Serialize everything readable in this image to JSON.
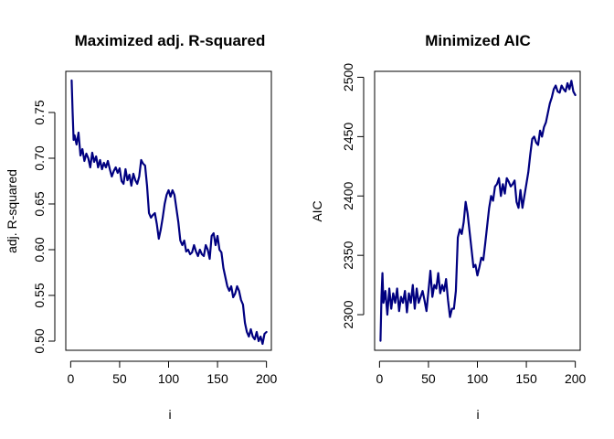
{
  "chart_data": [
    {
      "type": "line",
      "title": "Maximized adj. R-squared",
      "xlabel": "i",
      "ylabel": "adj. R-squared",
      "xlim": [
        -5,
        205
      ],
      "ylim": [
        0.49,
        0.795
      ],
      "xticks": [
        0,
        50,
        100,
        150,
        200
      ],
      "yticks": [
        0.5,
        0.55,
        0.6,
        0.65,
        0.7,
        0.75
      ],
      "ytick_labels": [
        "0.50",
        "0.55",
        "0.60",
        "0.65",
        "0.70",
        "0.75"
      ],
      "grid": false,
      "color": "#000080",
      "x": [
        1,
        2,
        3,
        4,
        6,
        8,
        10,
        12,
        14,
        16,
        18,
        20,
        22,
        24,
        26,
        28,
        30,
        32,
        34,
        36,
        38,
        40,
        42,
        44,
        46,
        48,
        50,
        52,
        54,
        56,
        58,
        60,
        62,
        64,
        66,
        68,
        70,
        72,
        74,
        76,
        78,
        80,
        82,
        84,
        86,
        88,
        90,
        92,
        94,
        96,
        98,
        100,
        102,
        104,
        106,
        108,
        110,
        112,
        114,
        116,
        118,
        120,
        122,
        124,
        126,
        128,
        130,
        132,
        134,
        136,
        138,
        140,
        142,
        144,
        146,
        148,
        150,
        152,
        154,
        156,
        158,
        160,
        162,
        164,
        166,
        168,
        170,
        172,
        174,
        176,
        178,
        180,
        182,
        184,
        186,
        188,
        190,
        192,
        194,
        196,
        198,
        200
      ],
      "y": [
        0.785,
        0.75,
        0.72,
        0.725,
        0.715,
        0.728,
        0.703,
        0.71,
        0.697,
        0.705,
        0.7,
        0.69,
        0.706,
        0.696,
        0.702,
        0.69,
        0.698,
        0.688,
        0.695,
        0.69,
        0.697,
        0.688,
        0.68,
        0.686,
        0.69,
        0.684,
        0.689,
        0.675,
        0.672,
        0.688,
        0.676,
        0.682,
        0.67,
        0.683,
        0.676,
        0.672,
        0.68,
        0.698,
        0.694,
        0.692,
        0.67,
        0.64,
        0.635,
        0.638,
        0.64,
        0.628,
        0.612,
        0.622,
        0.635,
        0.65,
        0.66,
        0.665,
        0.658,
        0.665,
        0.66,
        0.645,
        0.63,
        0.61,
        0.605,
        0.61,
        0.598,
        0.6,
        0.595,
        0.597,
        0.605,
        0.598,
        0.593,
        0.6,
        0.595,
        0.593,
        0.605,
        0.6,
        0.59,
        0.615,
        0.618,
        0.605,
        0.615,
        0.6,
        0.597,
        0.58,
        0.57,
        0.56,
        0.555,
        0.56,
        0.548,
        0.552,
        0.56,
        0.555,
        0.545,
        0.54,
        0.52,
        0.51,
        0.505,
        0.513,
        0.505,
        0.502,
        0.51,
        0.5,
        0.505,
        0.497,
        0.508,
        0.51
      ]
    },
    {
      "type": "line",
      "title": "Minimized AIC",
      "xlabel": "i",
      "ylabel": "AIC",
      "xlim": [
        -5,
        205
      ],
      "ylim": [
        2270,
        2505
      ],
      "xticks": [
        0,
        50,
        100,
        150,
        200
      ],
      "yticks": [
        2300,
        2350,
        2400,
        2450,
        2500
      ],
      "ytick_labels": [
        "2300",
        "2350",
        "2400",
        "2450",
        "2500"
      ],
      "grid": false,
      "color": "#000080",
      "x": [
        1,
        2,
        3,
        4,
        6,
        8,
        10,
        12,
        14,
        16,
        18,
        20,
        22,
        24,
        26,
        28,
        30,
        32,
        34,
        36,
        38,
        40,
        42,
        44,
        46,
        48,
        50,
        52,
        54,
        56,
        58,
        60,
        62,
        64,
        66,
        68,
        70,
        72,
        74,
        76,
        78,
        80,
        82,
        84,
        86,
        88,
        90,
        92,
        94,
        96,
        98,
        100,
        102,
        104,
        106,
        108,
        110,
        112,
        114,
        116,
        118,
        120,
        122,
        124,
        126,
        128,
        130,
        132,
        134,
        136,
        138,
        140,
        142,
        144,
        146,
        148,
        150,
        152,
        154,
        156,
        158,
        160,
        162,
        164,
        166,
        168,
        170,
        172,
        174,
        176,
        178,
        180,
        182,
        184,
        186,
        188,
        190,
        192,
        194,
        196,
        198,
        200
      ],
      "y": [
        2278,
        2315,
        2335,
        2310,
        2320,
        2300,
        2322,
        2305,
        2318,
        2310,
        2322,
        2303,
        2315,
        2310,
        2320,
        2302,
        2318,
        2310,
        2325,
        2305,
        2322,
        2310,
        2315,
        2320,
        2312,
        2303,
        2320,
        2337,
        2315,
        2325,
        2322,
        2335,
        2318,
        2325,
        2320,
        2330,
        2312,
        2298,
        2305,
        2305,
        2320,
        2365,
        2372,
        2368,
        2378,
        2395,
        2385,
        2370,
        2355,
        2340,
        2342,
        2333,
        2340,
        2348,
        2346,
        2360,
        2375,
        2390,
        2400,
        2396,
        2408,
        2410,
        2415,
        2400,
        2410,
        2402,
        2415,
        2412,
        2408,
        2410,
        2413,
        2395,
        2390,
        2405,
        2390,
        2400,
        2410,
        2420,
        2435,
        2448,
        2450,
        2445,
        2443,
        2455,
        2450,
        2458,
        2462,
        2470,
        2478,
        2483,
        2490,
        2493,
        2488,
        2487,
        2493,
        2490,
        2488,
        2495,
        2490,
        2497,
        2488,
        2485
      ]
    }
  ]
}
